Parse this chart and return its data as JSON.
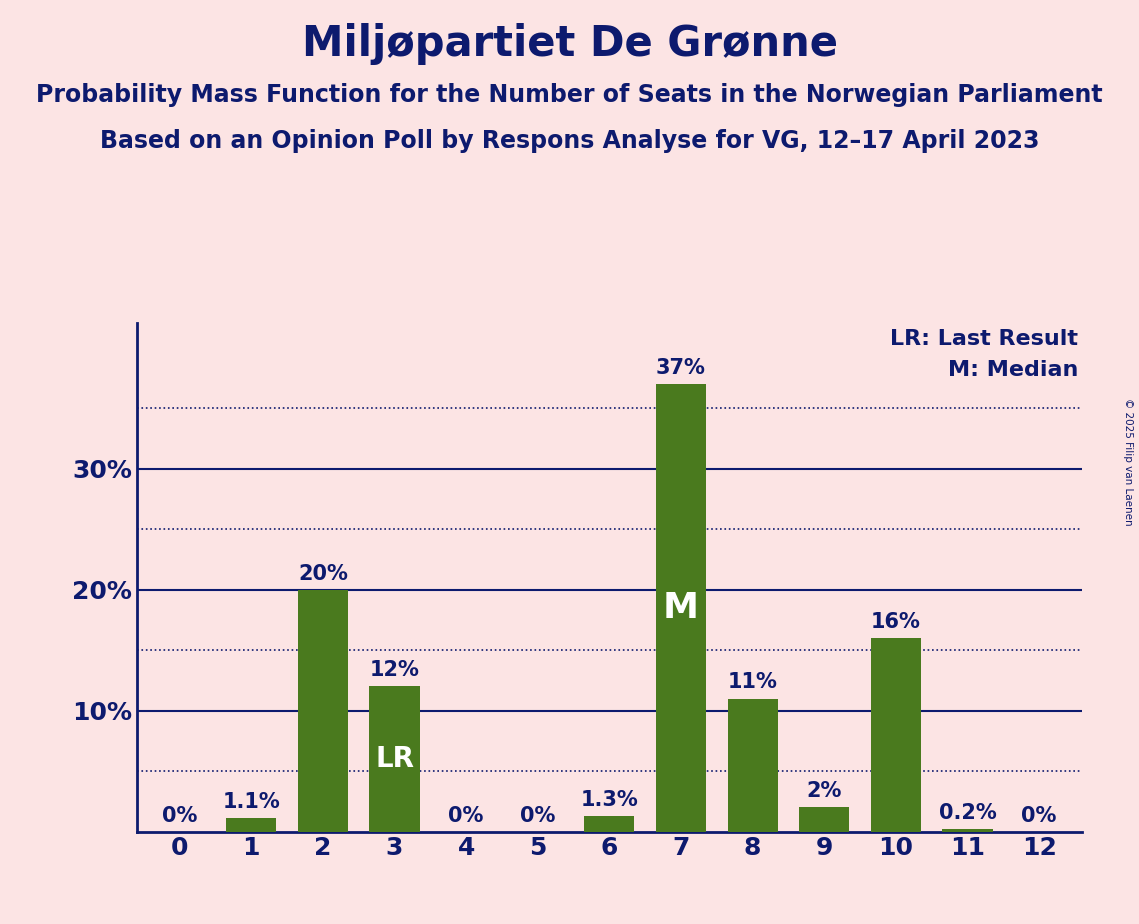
{
  "title": "Miljøpartiet De Grønne",
  "subtitle1": "Probability Mass Function for the Number of Seats in the Norwegian Parliament",
  "subtitle2": "Based on an Opinion Poll by Respons Analyse for VG, 12–17 April 2023",
  "copyright": "© 2025 Filip van Laenen",
  "categories": [
    0,
    1,
    2,
    3,
    4,
    5,
    6,
    7,
    8,
    9,
    10,
    11,
    12
  ],
  "values": [
    0.0,
    1.1,
    20.0,
    12.0,
    0.0,
    0.0,
    1.3,
    37.0,
    11.0,
    2.0,
    16.0,
    0.2,
    0.0
  ],
  "labels": [
    "0%",
    "1.1%",
    "20%",
    "12%",
    "0%",
    "0%",
    "1.3%",
    "37%",
    "11%",
    "2%",
    "16%",
    "0.2%",
    "0%"
  ],
  "bar_color": "#4a7a1e",
  "background_color": "#fce4e4",
  "text_color": "#0d1a6e",
  "grid_color": "#0d1a6e",
  "lr_bar": 3,
  "median_bar": 7,
  "ylim": [
    0,
    42
  ],
  "legend_lr": "LR: Last Result",
  "legend_m": "M: Median",
  "title_fontsize": 30,
  "subtitle_fontsize": 17,
  "label_fontsize": 15,
  "axis_fontsize": 18,
  "legend_fontsize": 16,
  "dotted_lines": [
    5,
    15,
    25,
    35
  ],
  "solid_lines": [
    10,
    20,
    30
  ]
}
